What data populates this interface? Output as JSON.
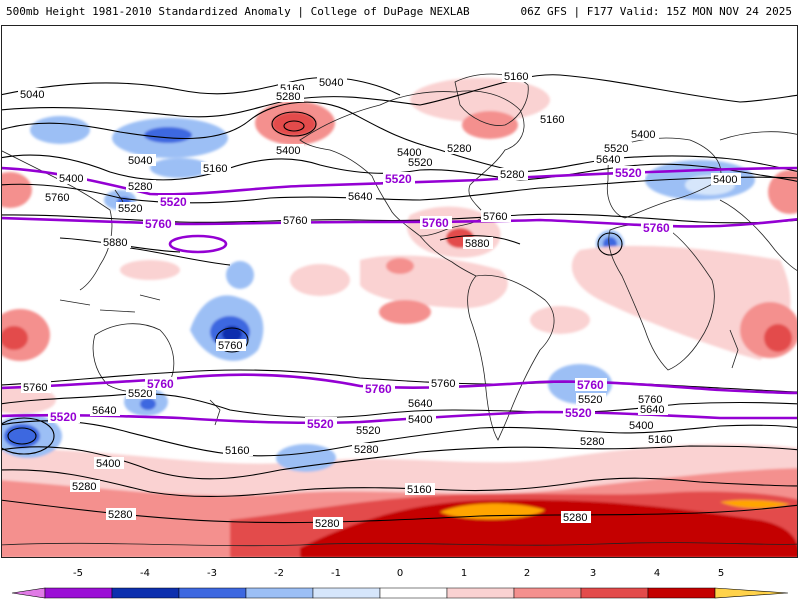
{
  "header": {
    "title_left": "500mb Height 1981-2010 Standardized Anomaly | College of DuPage NEXLAB",
    "title_right": "06Z GFS | F177 Valid: 15Z MON NOV 24 2025"
  },
  "map": {
    "projection": "global cylindrical",
    "black_contour_labels": [
      "5040",
      "5160",
      "5280",
      "5400",
      "5520",
      "5640",
      "5760",
      "5880"
    ],
    "purple_contour_labels": [
      "5520",
      "5760"
    ],
    "colors": {
      "contour_black": "#000000",
      "contour_purple": "#9400d3",
      "coast": "#222222"
    }
  },
  "colorbar": {
    "ticks": [
      "-5",
      "-4",
      "-3",
      "-2",
      "-1",
      "0",
      "1",
      "2",
      "3",
      "4",
      "5"
    ],
    "colors": [
      "#9b0fd6",
      "#0c2fae",
      "#3d68e0",
      "#9cbff5",
      "#d6e6fb",
      "#ffffff",
      "#fad2d2",
      "#f4908e",
      "#e34b4b",
      "#c40000",
      "#ffa500"
    ]
  }
}
